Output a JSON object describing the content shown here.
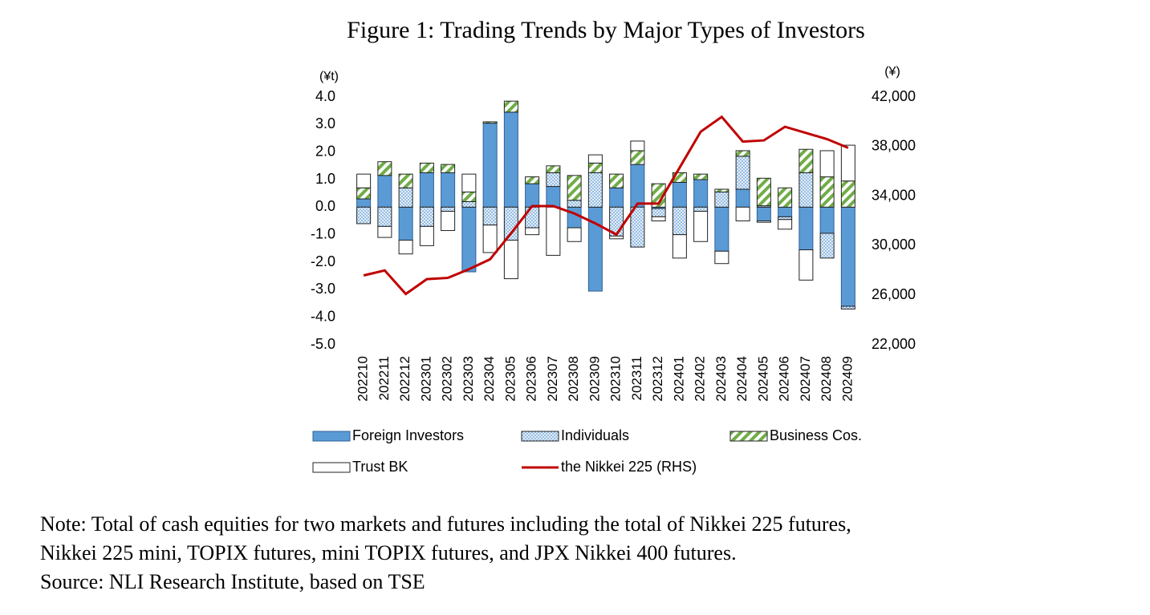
{
  "chart_data": {
    "type": "bar",
    "stacked": true,
    "title": "Figure 1: Trading Trends by Major Types of Investors",
    "y_label": "(¥t)",
    "y2_label": "(¥)",
    "categories": [
      "202210",
      "202211",
      "202212",
      "202301",
      "202302",
      "202303",
      "202304",
      "202305",
      "202306",
      "202307",
      "202308",
      "202309",
      "202310",
      "202311",
      "202312",
      "202401",
      "202402",
      "202403",
      "202404",
      "202405",
      "202406",
      "202407",
      "202408",
      "202409"
    ],
    "series": [
      {
        "name": "Foreign Investors",
        "color": "#5b9bd5",
        "fill_style": "solid",
        "values": [
          0.3,
          1.15,
          -1.2,
          1.25,
          1.25,
          -2.35,
          3.05,
          3.45,
          0.85,
          0.75,
          -0.75,
          -3.05,
          0.7,
          1.55,
          -0.05,
          0.9,
          1.0,
          -1.6,
          0.65,
          -0.5,
          -0.35,
          -1.55,
          -0.95,
          -3.6
        ]
      },
      {
        "name": "Individuals",
        "color": "#5b9bd5",
        "fill_style": "dots",
        "values": [
          -0.6,
          -0.7,
          0.7,
          -0.7,
          -0.15,
          0.2,
          -0.65,
          -1.2,
          -0.75,
          0.5,
          0.25,
          1.25,
          -1.05,
          -1.45,
          -0.3,
          -1.0,
          -0.15,
          0.55,
          1.2,
          0.05,
          -0.1,
          1.25,
          -0.9,
          -0.1
        ]
      },
      {
        "name": "Business Cos.",
        "color": "#70ad47",
        "fill_style": "hatch",
        "values": [
          0.4,
          0.5,
          0.5,
          0.35,
          0.3,
          0.35,
          0.05,
          0.4,
          0.25,
          0.25,
          0.9,
          0.35,
          0.5,
          0.5,
          0.85,
          0.35,
          0.2,
          0.1,
          0.2,
          1.0,
          0.7,
          0.85,
          1.1,
          0.95
        ]
      },
      {
        "name": "Trust BK",
        "color": "#ffffff",
        "fill_style": "solid",
        "values": [
          0.5,
          -0.4,
          -0.5,
          -0.7,
          -0.7,
          0.65,
          -1.0,
          -1.4,
          -0.25,
          -1.75,
          -0.5,
          0.3,
          -0.1,
          0.35,
          -0.15,
          -0.85,
          -1.1,
          -0.45,
          -0.5,
          -0.05,
          -0.35,
          -1.1,
          0.95,
          1.3
        ]
      },
      {
        "name": "the Nikkei 225 (RHS)",
        "color": "#c00000",
        "type": "line",
        "axis": "y2",
        "values": [
          27600,
          28000,
          26100,
          27300,
          27400,
          28100,
          28900,
          31000,
          33200,
          33200,
          32600,
          31800,
          30900,
          33400,
          33400,
          36300,
          39200,
          40400,
          38400,
          38500,
          39600,
          39100,
          38600,
          37900
        ]
      }
    ],
    "ylim": [
      -5,
      4
    ],
    "yticks": [
      {
        "value": -5,
        "label": "-5.0"
      },
      {
        "value": -4,
        "label": "-4.0"
      },
      {
        "value": -3,
        "label": "-3.0"
      },
      {
        "value": -2,
        "label": "-2.0"
      },
      {
        "value": -1,
        "label": "-1.0"
      },
      {
        "value": 0,
        "label": "0.0"
      },
      {
        "value": 1,
        "label": "1.0"
      },
      {
        "value": 2,
        "label": "2.0"
      },
      {
        "value": 3,
        "label": "3.0"
      },
      {
        "value": 4,
        "label": "4.0"
      }
    ],
    "y2lim": [
      22000,
      42000
    ],
    "y2ticks": [
      {
        "value": 22000,
        "label": "22,000"
      },
      {
        "value": 26000,
        "label": "26,000"
      },
      {
        "value": 30000,
        "label": "30,000"
      },
      {
        "value": 34000,
        "label": "34,000"
      },
      {
        "value": 38000,
        "label": "38,000"
      },
      {
        "value": 42000,
        "label": "42,000"
      }
    ],
    "grid": false,
    "notes": [
      "Note: Total of cash equities for two markets and futures including the total of Nikkei 225 futures,",
      "Nikkei 225 mini, TOPIX futures, mini TOPIX futures, and JPX Nikkei 400 futures.",
      "Source: NLI Research Institute, based on TSE"
    ]
  }
}
